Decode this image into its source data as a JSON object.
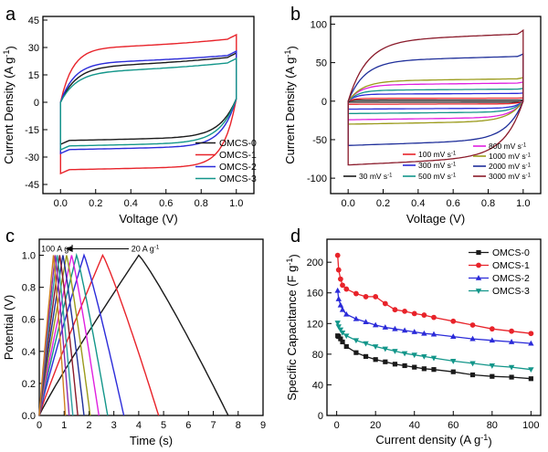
{
  "chart_data": [
    {
      "panel": "a",
      "type": "line",
      "xlabel": "Voltage (V)",
      "ylabel": "Current Density (A g-1)",
      "ylabel_parts": [
        "Current Density (A g",
        "-1",
        ")"
      ],
      "xlim": [
        -0.1,
        1.1
      ],
      "ylim": [
        -50,
        47
      ],
      "xticks": [
        0.0,
        0.2,
        0.4,
        0.6,
        0.8,
        1.0
      ],
      "xtick_labels": [
        "0.0",
        "0.2",
        "0.4",
        "0.6",
        "0.8",
        "1.0"
      ],
      "yticks": [
        -45,
        -30,
        -15,
        0,
        15,
        30,
        45
      ],
      "ytick_labels": [
        "-45",
        "-30",
        "-15",
        "0",
        "15",
        "30",
        "45"
      ],
      "legend_position": "bottom-right",
      "series": [
        {
          "name": "OMCS-0",
          "color": "#1a1a1a",
          "upper": 20,
          "lower": -21,
          "rise": 5,
          "k": 0.09
        },
        {
          "name": "OMCS-1",
          "color": "#e8232a",
          "upper": 30,
          "lower": -37,
          "rise": 5,
          "k": 0.07
        },
        {
          "name": "OMCS-2",
          "color": "#2b2bd9",
          "upper": 22,
          "lower": -26,
          "rise": 4,
          "k": 0.08
        },
        {
          "name": "OMCS-3",
          "color": "#13968a",
          "upper": 17,
          "lower": -24,
          "rise": 5,
          "k": 0.09
        }
      ]
    },
    {
      "panel": "b",
      "type": "line",
      "xlabel": "Voltage (V)",
      "ylabel": "Current Density (A g-1)",
      "ylabel_parts": [
        "Current Density (A g",
        "-1",
        ")"
      ],
      "xlim": [
        -0.1,
        1.1
      ],
      "ylim": [
        -120,
        110
      ],
      "xticks": [
        0.0,
        0.2,
        0.4,
        0.6,
        0.8,
        1.0
      ],
      "xtick_labels": [
        "0.0",
        "0.2",
        "0.4",
        "0.6",
        "0.8",
        "1.0"
      ],
      "yticks": [
        -100,
        -50,
        0,
        50,
        100
      ],
      "ytick_labels": [
        "-100",
        "-50",
        "0",
        "50",
        "100"
      ],
      "legend_position": "bottom",
      "series": [
        {
          "name": "30 mV s-1",
          "label_parts": [
            "30 mV s",
            "-1"
          ],
          "color": "#1a1a1a",
          "upper": 1.2,
          "lower": -1.2
        },
        {
          "name": "100 mV s-1",
          "label_parts": [
            "100 mV s",
            "-1"
          ],
          "color": "#e8232a",
          "upper": 3.5,
          "lower": -3.5
        },
        {
          "name": "300 mV s-1",
          "label_parts": [
            "300 mV s",
            "-1"
          ],
          "color": "#2b2bd9",
          "upper": 9,
          "lower": -9
        },
        {
          "name": "500 mV s-1",
          "label_parts": [
            "500 mV s",
            "-1"
          ],
          "color": "#13968a",
          "upper": 14,
          "lower": -14
        },
        {
          "name": "800 mV s-1",
          "label_parts": [
            "800 mV s",
            "-1"
          ],
          "color": "#e020e0",
          "upper": 21,
          "lower": -21
        },
        {
          "name": "1000 mV s-1",
          "label_parts": [
            "1000 mV s",
            "-1"
          ],
          "color": "#9a9a1a",
          "upper": 26,
          "lower": -26
        },
        {
          "name": "2000 mV s-1",
          "label_parts": [
            "2000 mV s",
            "-1"
          ],
          "color": "#1f2f9a",
          "upper": 52,
          "lower": -50
        },
        {
          "name": "3000 mV s-1",
          "label_parts": [
            "3000 mV s",
            "-1"
          ],
          "color": "#8a1a2a",
          "upper": 78,
          "lower": -72
        }
      ]
    },
    {
      "panel": "c",
      "type": "line",
      "xlabel": "Time (s)",
      "ylabel": "Potential (V)",
      "xlim": [
        0,
        9
      ],
      "ylim": [
        0,
        1.1
      ],
      "xticks": [
        0,
        1,
        2,
        3,
        4,
        5,
        6,
        7,
        8,
        9
      ],
      "xtick_labels": [
        "0",
        "1",
        "2",
        "3",
        "4",
        "5",
        "6",
        "7",
        "8",
        "9"
      ],
      "yticks": [
        0.0,
        0.2,
        0.4,
        0.6,
        0.8,
        1.0
      ],
      "ytick_labels": [
        "0.0",
        "0.2",
        "0.4",
        "0.6",
        "0.8",
        "1.0"
      ],
      "annotations": [
        {
          "text_parts": [
            "100 A g",
            "-1"
          ],
          "x": 0.08,
          "y": 1.04
        },
        {
          "text_parts": [
            "20 A g",
            "-1"
          ],
          "x": 3.7,
          "y": 1.04
        }
      ],
      "series": [
        {
          "color": "#1a1a1a",
          "charge_end": 4.0,
          "discharge_end": 7.6
        },
        {
          "color": "#e8232a",
          "charge_end": 2.55,
          "discharge_end": 4.8
        },
        {
          "color": "#2b2bd9",
          "charge_end": 1.8,
          "discharge_end": 3.4
        },
        {
          "color": "#13968a",
          "charge_end": 1.5,
          "discharge_end": 2.75
        },
        {
          "color": "#e020e0",
          "charge_end": 1.3,
          "discharge_end": 2.4
        },
        {
          "color": "#9a9a1a",
          "charge_end": 1.1,
          "discharge_end": 2.05
        },
        {
          "color": "#1f2f9a",
          "charge_end": 0.95,
          "discharge_end": 1.8
        },
        {
          "color": "#8a1a2a",
          "charge_end": 0.82,
          "discharge_end": 1.55
        },
        {
          "color": "#2ba0a0",
          "charge_end": 0.72,
          "discharge_end": 1.35
        },
        {
          "color": "#8a2ab0",
          "charge_end": 0.64,
          "discharge_end": 1.2
        },
        {
          "color": "#d08020",
          "charge_end": 0.57,
          "discharge_end": 1.05
        }
      ]
    },
    {
      "panel": "d",
      "type": "line",
      "xlabel": "Current density (A g-1)",
      "xlabel_parts": [
        "Current density (A g",
        "-1",
        ")"
      ],
      "ylabel": "Specific Capacitance (F g-1)",
      "ylabel_parts": [
        "Specific Capacitance (F g",
        "-1",
        ")"
      ],
      "xlim": [
        -5,
        105
      ],
      "ylim": [
        0,
        230
      ],
      "xticks": [
        0,
        20,
        40,
        60,
        80,
        100
      ],
      "xtick_labels": [
        "0",
        "20",
        "40",
        "60",
        "80",
        "100"
      ],
      "yticks": [
        0,
        40,
        80,
        120,
        160,
        200
      ],
      "ytick_labels": [
        "0",
        "40",
        "80",
        "120",
        "160",
        "200"
      ],
      "legend_position": "top-right",
      "x": [
        0.5,
        1,
        2,
        3,
        5,
        10,
        15,
        20,
        25,
        30,
        35,
        40,
        45,
        50,
        60,
        70,
        80,
        90,
        100
      ],
      "series": [
        {
          "name": "OMCS-0",
          "color": "#1a1a1a",
          "marker": "square",
          "values": [
            104,
            103,
            100,
            96,
            90,
            82,
            77,
            73,
            70,
            67,
            65,
            63,
            61,
            60,
            57,
            53,
            51,
            50,
            48
          ]
        },
        {
          "name": "OMCS-1",
          "color": "#e8232a",
          "marker": "circle",
          "values": [
            209,
            190,
            178,
            170,
            165,
            159,
            155,
            155,
            146,
            138,
            136,
            133,
            131,
            128,
            123,
            118,
            113,
            110,
            107
          ]
        },
        {
          "name": "OMCS-2",
          "color": "#2b2bd9",
          "marker": "triangle-up",
          "values": [
            163,
            152,
            144,
            138,
            132,
            126,
            122,
            118,
            115,
            113,
            111,
            109,
            107,
            106,
            103,
            100,
            98,
            96,
            94
          ]
        },
        {
          "name": "OMCS-3",
          "color": "#13968a",
          "marker": "triangle-down",
          "values": [
            121,
            116,
            112,
            108,
            104,
            98,
            94,
            90,
            87,
            84,
            81,
            79,
            77,
            75,
            71,
            68,
            65,
            63,
            60
          ]
        }
      ]
    }
  ]
}
